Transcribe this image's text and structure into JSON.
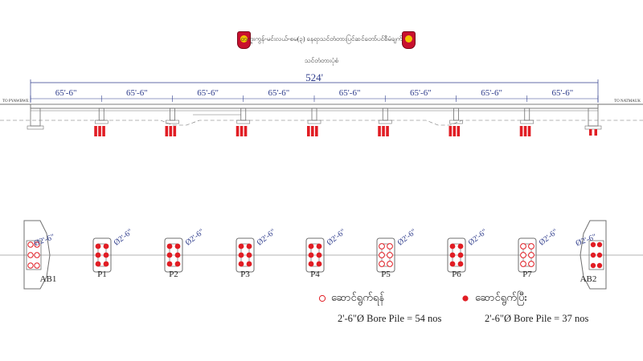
{
  "title_line1": "တကူးကွန်-မင်းလယ်-စမ(၃) နေရာသင်တံတားပြင်ဆင်တော်ပင်စီမံချက်",
  "title_line2": "သင်တံတားပုံစံ",
  "total_length": "524'",
  "span_length": "65'-6\"",
  "span_count": 8,
  "road_left": "TO PYAWBWE",
  "road_right": "TO NATMAUK",
  "pile_dim": "Ø2'-6\"",
  "supports": [
    {
      "label": "AB1"
    },
    {
      "label": "P1"
    },
    {
      "label": "P2"
    },
    {
      "label": "P3"
    },
    {
      "label": "P4"
    },
    {
      "label": "P5"
    },
    {
      "label": "P6"
    },
    {
      "label": "P7"
    },
    {
      "label": "AB2"
    }
  ],
  "legend": {
    "hollow_label": "ဆောင်ရွက်ရန်",
    "hollow_count": "2'-6\"Ø Bore Pile  = 54  nos",
    "filled_label": "ဆောင်ရွက်ပြီး",
    "filled_count": "2'-6\"Ø Bore Pile  = 37  nos"
  },
  "colors": {
    "line": "#6f6f6f",
    "dim": "#2f3d8c",
    "pile": "#e11d24",
    "emblem": "#c8102e"
  }
}
